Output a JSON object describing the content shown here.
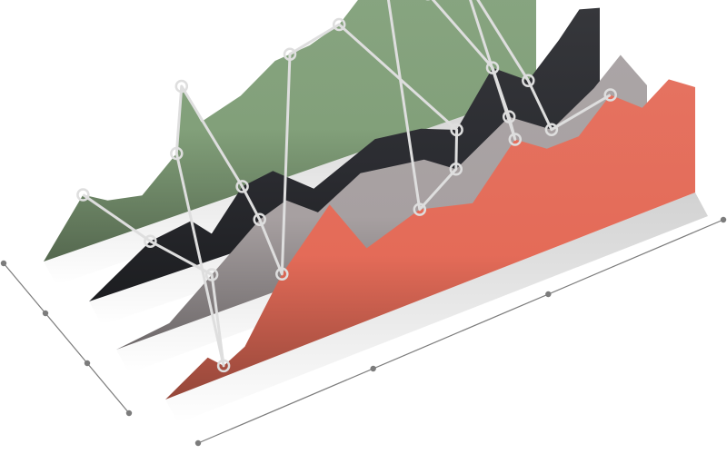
{
  "chart_data": {
    "type": "area",
    "title": "",
    "xlabel": "",
    "ylabel": "",
    "perspective": "3d-stacked-ribbons",
    "grid": false,
    "legend": "none",
    "series": [
      {
        "color": "#82a07a",
        "values": [
          [
            0.0,
            0.0
          ],
          [
            0.08,
            0.3
          ],
          [
            0.13,
            0.22
          ],
          [
            0.2,
            0.18
          ],
          [
            0.27,
            0.35
          ],
          [
            0.28,
            0.72
          ],
          [
            0.32,
            0.48
          ],
          [
            0.4,
            0.55
          ],
          [
            0.47,
            0.68
          ],
          [
            0.54,
            0.7
          ],
          [
            0.6,
            0.76
          ],
          [
            0.69,
            1.0
          ],
          [
            0.78,
            0.76
          ],
          [
            0.85,
            0.8
          ],
          [
            0.9,
            0.62
          ],
          [
            1.0,
            0.52
          ]
        ]
      },
      {
        "color": "#2b2c31",
        "values": [
          [
            0.0,
            0.0
          ],
          [
            0.12,
            0.3
          ],
          [
            0.2,
            0.35
          ],
          [
            0.24,
            0.2
          ],
          [
            0.3,
            0.48
          ],
          [
            0.36,
            0.52
          ],
          [
            0.44,
            0.28
          ],
          [
            0.56,
            0.5
          ],
          [
            0.65,
            0.46
          ],
          [
            0.72,
            0.36
          ],
          [
            0.79,
            0.74
          ],
          [
            0.86,
            0.55
          ],
          [
            0.92,
            0.78
          ],
          [
            0.96,
            0.96
          ],
          [
            1.0,
            0.92
          ]
        ]
      },
      {
        "color": "#a7a0a1",
        "values": [
          [
            0.0,
            0.0
          ],
          [
            0.1,
            0.06
          ],
          [
            0.18,
            0.34
          ],
          [
            0.27,
            0.66
          ],
          [
            0.32,
            0.74
          ],
          [
            0.38,
            0.54
          ],
          [
            0.46,
            0.74
          ],
          [
            0.58,
            0.66
          ],
          [
            0.64,
            0.48
          ],
          [
            0.74,
            0.76
          ],
          [
            0.82,
            0.52
          ],
          [
            0.9,
            0.74
          ],
          [
            0.95,
            0.94
          ],
          [
            1.0,
            0.6
          ]
        ]
      },
      {
        "color": "#e46b58",
        "values": [
          [
            0.0,
            0.0
          ],
          [
            0.08,
            0.14
          ],
          [
            0.11,
            0.06
          ],
          [
            0.15,
            0.12
          ],
          [
            0.22,
            0.44
          ],
          [
            0.31,
            0.72
          ],
          [
            0.38,
            0.4
          ],
          [
            0.48,
            0.5
          ],
          [
            0.58,
            0.42
          ],
          [
            0.66,
            0.68
          ],
          [
            0.72,
            0.56
          ],
          [
            0.78,
            0.56
          ],
          [
            0.84,
            0.72
          ],
          [
            0.9,
            0.58
          ],
          [
            0.95,
            0.68
          ],
          [
            1.0,
            0.58
          ]
        ]
      }
    ],
    "connector": {
      "color": "#dedede",
      "markers": [
        {
          "series": 0,
          "x": 0.08
        },
        {
          "series": 1,
          "x": 0.12
        },
        {
          "series": 2,
          "x": 0.18
        },
        {
          "series": 3,
          "x": 0.11
        },
        {
          "series": 0,
          "x": 0.27
        },
        {
          "series": 0,
          "x": 0.28
        },
        {
          "series": 1,
          "x": 0.3
        },
        {
          "series": 2,
          "x": 0.27
        },
        {
          "series": 3,
          "x": 0.22
        },
        {
          "series": 0,
          "x": 0.5
        },
        {
          "series": 0,
          "x": 0.6
        },
        {
          "series": 1,
          "x": 0.72
        },
        {
          "series": 2,
          "x": 0.64
        },
        {
          "series": 3,
          "x": 0.48
        },
        {
          "series": 0,
          "x": 0.69
        },
        {
          "series": 0,
          "x": 0.78
        },
        {
          "series": 1,
          "x": 0.79
        },
        {
          "series": 2,
          "x": 0.74
        },
        {
          "series": 3,
          "x": 0.66
        },
        {
          "series": 0,
          "x": 0.85
        },
        {
          "series": 1,
          "x": 0.86
        },
        {
          "series": 2,
          "x": 0.82
        },
        {
          "series": 3,
          "x": 0.84
        }
      ]
    },
    "axes": {
      "color": "#7c7c7c",
      "tick_count_depth": 4,
      "tick_count_horizontal": 4
    }
  }
}
